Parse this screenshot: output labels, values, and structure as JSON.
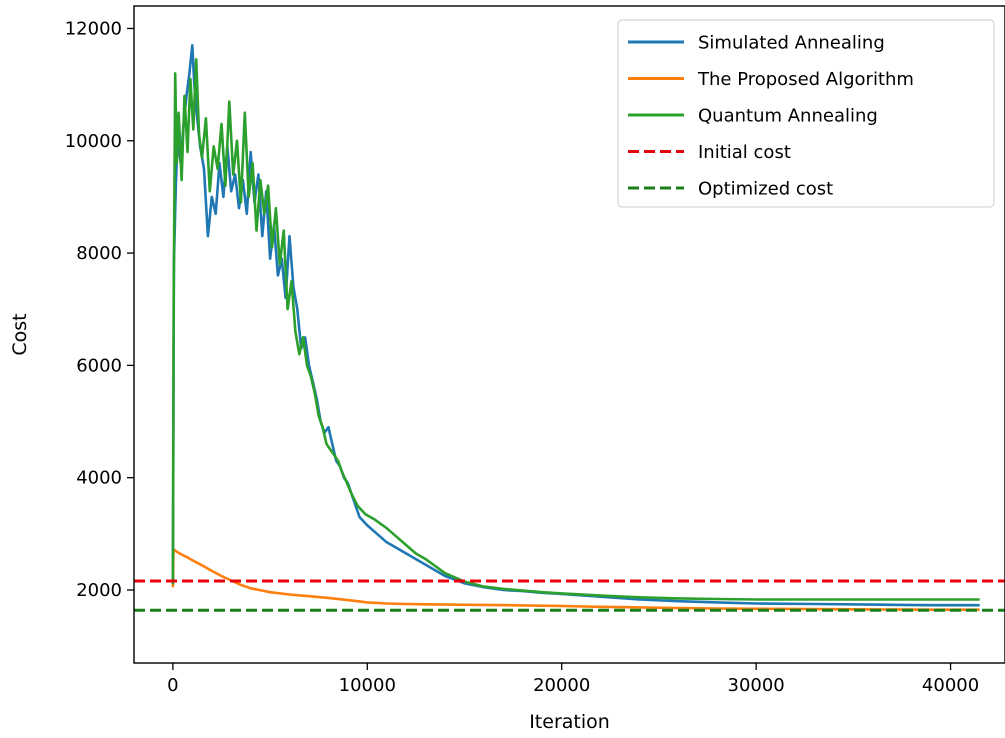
{
  "chart_data": {
    "type": "line",
    "title": "",
    "xlabel": "Iteration",
    "ylabel": "Cost",
    "xlim": [
      -2000,
      42800
    ],
    "ylim": [
      700,
      12400
    ],
    "xticks": [
      0,
      10000,
      20000,
      30000,
      40000
    ],
    "xtick_labels": [
      "0",
      "10000",
      "20000",
      "30000",
      "40000"
    ],
    "yticks": [
      2000,
      4000,
      6000,
      8000,
      10000,
      12000
    ],
    "ytick_labels": [
      "2000",
      "4000",
      "6000",
      "8000",
      "10000",
      "12000"
    ],
    "grid": false,
    "legend_position": "top-right",
    "series": [
      {
        "name": "Simulated Annealing",
        "color": "#1f77b4",
        "style": "solid",
        "x": [
          0,
          50,
          150,
          250,
          400,
          550,
          700,
          850,
          1000,
          1100,
          1250,
          1400,
          1600,
          1800,
          2000,
          2200,
          2400,
          2600,
          2800,
          3000,
          3200,
          3400,
          3600,
          3800,
          4000,
          4200,
          4400,
          4600,
          4800,
          5000,
          5200,
          5400,
          5600,
          5800,
          6000,
          6200,
          6400,
          6600,
          6800,
          7000,
          7200,
          7400,
          7600,
          7800,
          8000,
          8200,
          8400,
          8600,
          8800,
          9000,
          9300,
          9600,
          10000,
          10500,
          11000,
          11500,
          12000,
          12500,
          13000,
          14000,
          15000,
          16000,
          17000,
          18000,
          19000,
          20000,
          22000,
          24000,
          26000,
          28000,
          30000,
          33000,
          36000,
          39000,
          41500
        ],
        "y": [
          2150,
          7800,
          9200,
          10100,
          9600,
          10300,
          10800,
          11200,
          11700,
          11000,
          10400,
          9900,
          9500,
          8300,
          9000,
          8700,
          9600,
          9000,
          9900,
          9100,
          9400,
          8800,
          9300,
          8700,
          9800,
          8900,
          9400,
          8300,
          9100,
          7900,
          8500,
          7600,
          7900,
          7200,
          8300,
          7400,
          7000,
          6300,
          6500,
          6000,
          5700,
          5400,
          5000,
          4800,
          4900,
          4600,
          4300,
          4200,
          4000,
          3900,
          3600,
          3300,
          3150,
          3000,
          2850,
          2750,
          2650,
          2550,
          2450,
          2250,
          2120,
          2050,
          2000,
          1980,
          1950,
          1930,
          1880,
          1830,
          1800,
          1780,
          1760,
          1750,
          1740,
          1730,
          1730
        ]
      },
      {
        "name": "The Proposed Algorithm",
        "color": "#ff7f0e",
        "style": "solid",
        "x": [
          0,
          30,
          100,
          200,
          400,
          700,
          1000,
          1500,
          2000,
          2500,
          3000,
          3500,
          4000,
          5000,
          6000,
          7000,
          8000,
          9000,
          10000,
          11000,
          12000,
          13000,
          14000,
          16000,
          18000,
          20000,
          22000,
          24000,
          26000,
          28000,
          30000,
          33000,
          36000,
          39000,
          41500
        ],
        "y": [
          2050,
          2720,
          2710,
          2680,
          2640,
          2590,
          2530,
          2440,
          2340,
          2250,
          2170,
          2090,
          2030,
          1960,
          1920,
          1890,
          1860,
          1820,
          1780,
          1760,
          1750,
          1745,
          1740,
          1735,
          1725,
          1715,
          1700,
          1690,
          1680,
          1670,
          1665,
          1660,
          1655,
          1650,
          1650
        ]
      },
      {
        "name": "Quantum Annealing",
        "color": "#2ca02c",
        "style": "solid",
        "x": [
          0,
          40,
          120,
          200,
          300,
          450,
          600,
          750,
          900,
          1050,
          1200,
          1350,
          1500,
          1700,
          1900,
          2100,
          2300,
          2500,
          2700,
          2900,
          3100,
          3300,
          3500,
          3700,
          3900,
          4100,
          4300,
          4500,
          4700,
          4900,
          5100,
          5300,
          5500,
          5700,
          5900,
          6100,
          6300,
          6500,
          6700,
          6900,
          7100,
          7300,
          7500,
          7700,
          7900,
          8100,
          8300,
          8500,
          8700,
          8900,
          9200,
          9500,
          9900,
          10400,
          11000,
          11500,
          12000,
          12500,
          13000,
          14000,
          15000,
          16000,
          17000,
          18000,
          19000,
          20000,
          22000,
          24000,
          26000,
          28000,
          30000,
          33000,
          36000,
          39000,
          41500
        ],
        "y": [
          2100,
          7200,
          11200,
          9600,
          10500,
          9300,
          10800,
          9800,
          11100,
          10200,
          11450,
          10100,
          9700,
          10400,
          9100,
          9900,
          9500,
          10300,
          9200,
          10700,
          9400,
          10000,
          8900,
          10500,
          9000,
          9600,
          8400,
          9300,
          8700,
          9200,
          8100,
          8800,
          7800,
          8400,
          7000,
          7500,
          6600,
          6200,
          6500,
          6000,
          5800,
          5500,
          5100,
          4900,
          4600,
          4500,
          4400,
          4300,
          4100,
          3950,
          3700,
          3500,
          3350,
          3250,
          3100,
          2950,
          2800,
          2650,
          2550,
          2300,
          2150,
          2060,
          2020,
          1990,
          1960,
          1940,
          1900,
          1870,
          1850,
          1840,
          1830,
          1830,
          1830,
          1830,
          1830
        ]
      },
      {
        "name": "Initial cost",
        "color": "#e8000b",
        "style": "dashed",
        "x": [
          -2000,
          42800
        ],
        "y": [
          2160,
          2160
        ]
      },
      {
        "name": "Optimized cost",
        "color": "#1a7f1a",
        "style": "dashed",
        "x": [
          -2000,
          42800
        ],
        "y": [
          1640,
          1640
        ]
      }
    ]
  }
}
